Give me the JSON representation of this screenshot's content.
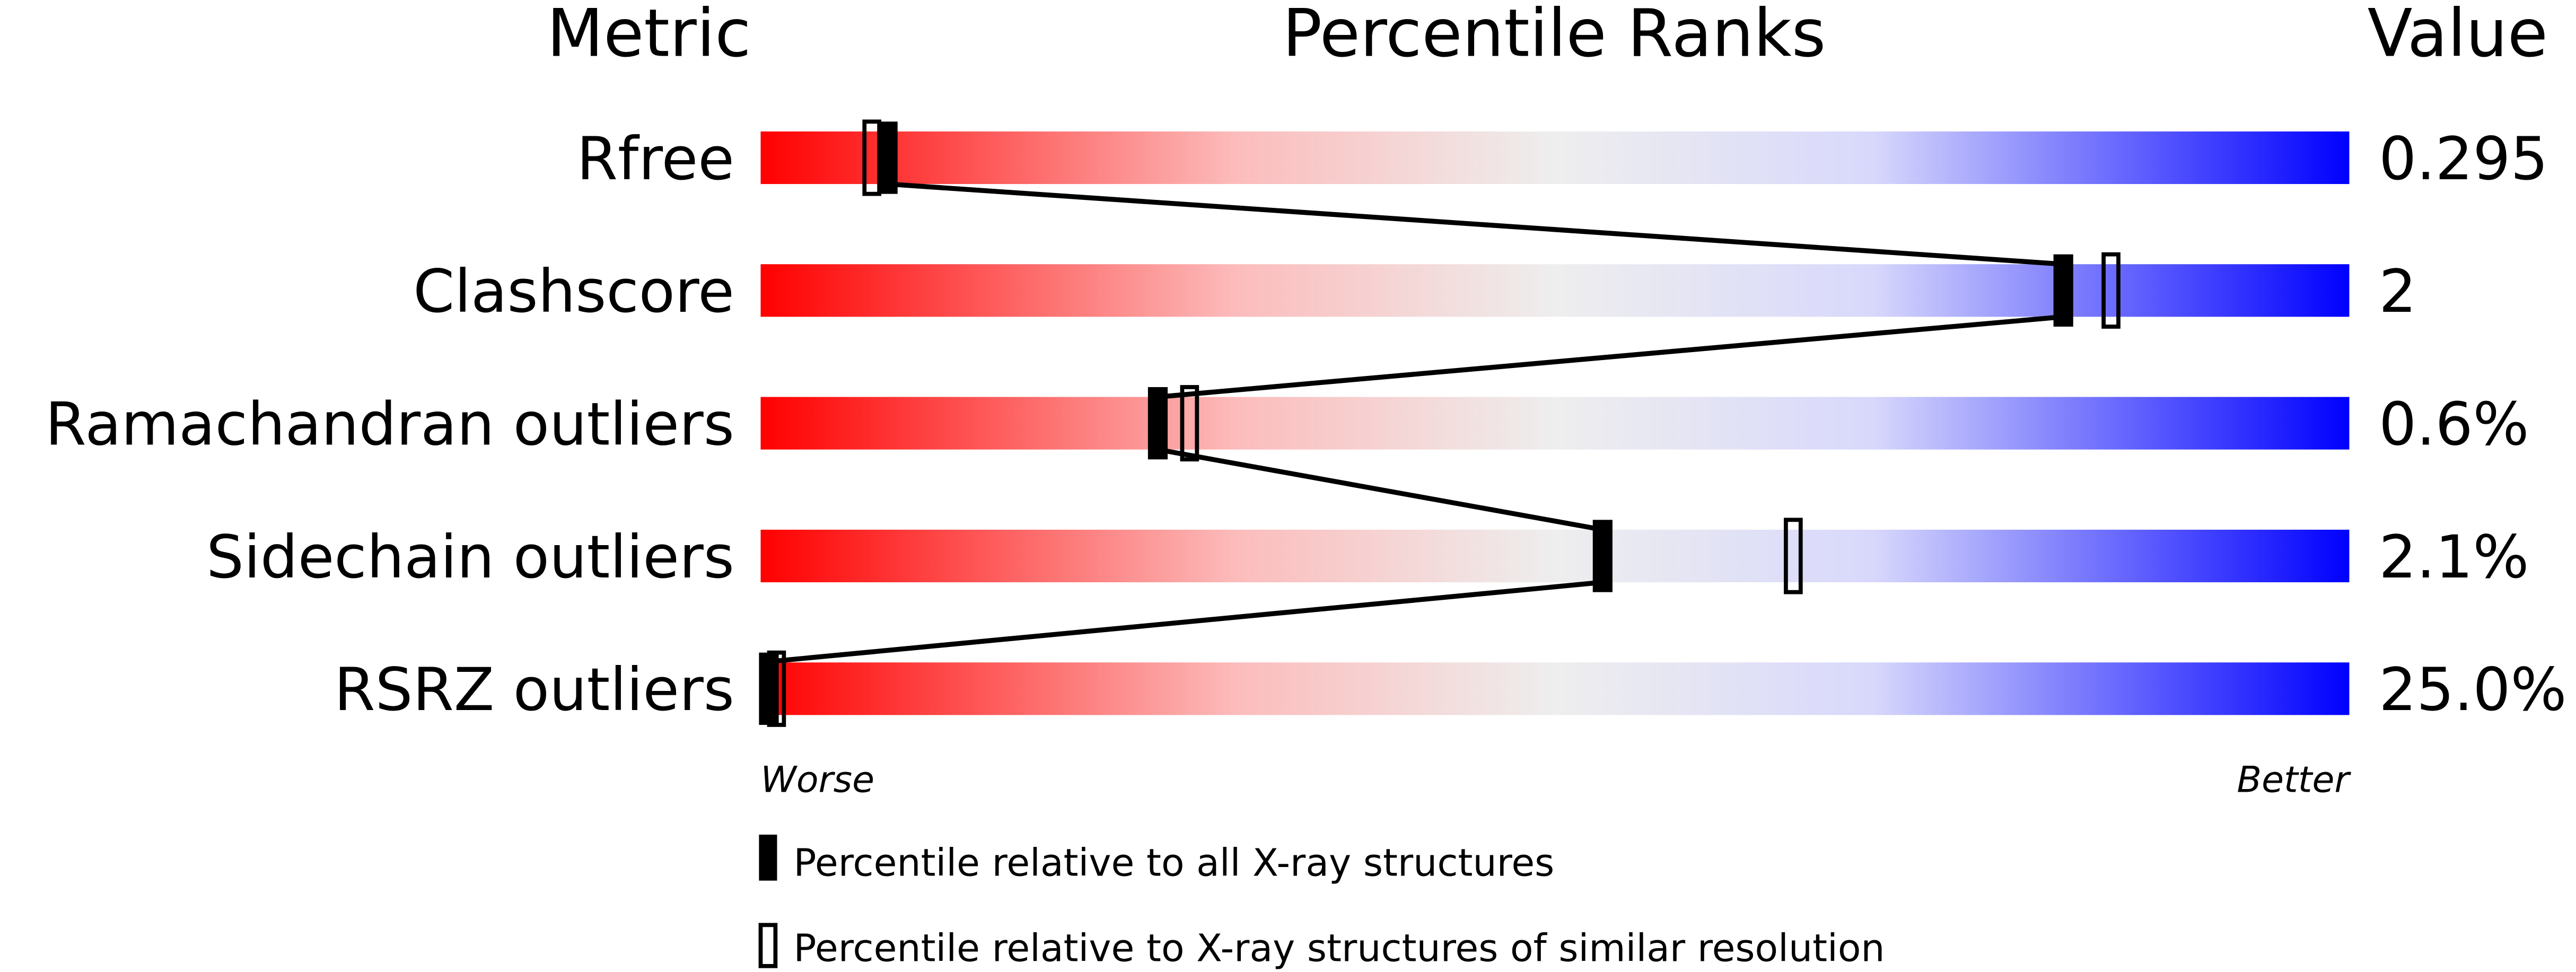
{
  "chart_data": {
    "type": "percentile-bar",
    "headers": {
      "metric": "Metric",
      "ranks": "Percentile Ranks",
      "value": "Value"
    },
    "xlim": [
      0,
      100
    ],
    "axis_labels": {
      "left": "Worse",
      "right": "Better"
    },
    "rows": [
      {
        "metric": "Rfree",
        "value": "0.295",
        "percentile_all": 8,
        "percentile_similar": 7
      },
      {
        "metric": "Clashscore",
        "value": "2",
        "percentile_all": 82,
        "percentile_similar": 85
      },
      {
        "metric": "Ramachandran outliers",
        "value": "0.6%",
        "percentile_all": 25,
        "percentile_similar": 27
      },
      {
        "metric": "Sidechain outliers",
        "value": "2.1%",
        "percentile_all": 53,
        "percentile_similar": 65
      },
      {
        "metric": "RSRZ outliers",
        "value": "25.0%",
        "percentile_all": 0,
        "percentile_similar": 1
      }
    ],
    "legend": [
      {
        "marker": "filled",
        "label": "Percentile relative to all X-ray structures"
      },
      {
        "marker": "open",
        "label": "Percentile relative to X-ray structures of similar resolution"
      }
    ],
    "colors": {
      "worse": "#ff0000",
      "middle": "#eeeeee",
      "better": "#0000ff"
    }
  }
}
